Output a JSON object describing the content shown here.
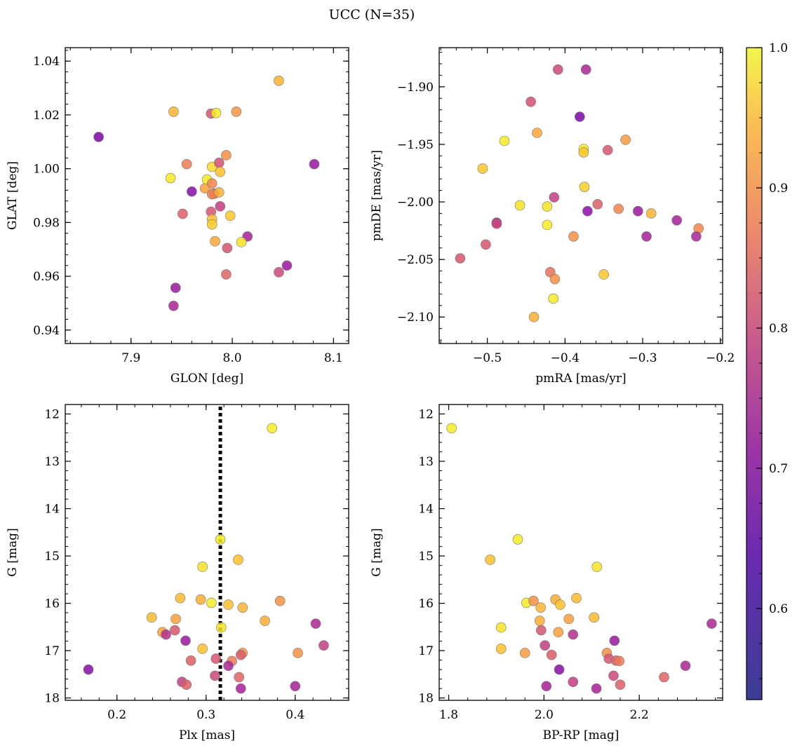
{
  "figure": {
    "title": "UCC (N=35)"
  },
  "colorbar": {
    "colormap": "plasma",
    "range": [
      0.535,
      1.0
    ],
    "ticks": [
      "1.0",
      "0.9",
      "0.8",
      "0.7",
      "0.6"
    ],
    "tick_values": [
      1.0,
      0.9,
      0.8,
      0.7,
      0.6
    ]
  },
  "chart_data": [
    {
      "id": "glon-glat",
      "type": "scatter",
      "xlabel": "GLON [deg]",
      "ylabel": "GLAT [deg]",
      "xlim": [
        7.835,
        8.115
      ],
      "ylim": [
        0.935,
        1.045
      ],
      "xticks": [
        "7.9",
        "8.0",
        "8.1"
      ],
      "xtick_values": [
        7.9,
        8.0,
        8.1
      ],
      "yticks": [
        "1.04",
        "1.02",
        "1.00",
        "0.98",
        "0.96",
        "0.94"
      ],
      "ytick_values": [
        1.04,
        1.02,
        1.0,
        0.98,
        0.96,
        0.94
      ],
      "points": [
        {
          "x": 7.868,
          "y": 1.0118,
          "c": 0.55
        },
        {
          "x": 8.081,
          "y": 1.0017,
          "c": 0.6
        },
        {
          "x": 8.046,
          "y": 1.0327,
          "c": 0.9
        },
        {
          "x": 7.942,
          "y": 1.0212,
          "c": 0.9
        },
        {
          "x": 8.004,
          "y": 1.0212,
          "c": 0.85
        },
        {
          "x": 7.979,
          "y": 1.0205,
          "c": 0.73
        },
        {
          "x": 7.984,
          "y": 1.0207,
          "c": 0.98
        },
        {
          "x": 7.939,
          "y": 0.9965,
          "c": 0.98
        },
        {
          "x": 7.955,
          "y": 1.0017,
          "c": 0.8
        },
        {
          "x": 7.96,
          "y": 0.9915,
          "c": 0.57
        },
        {
          "x": 7.973,
          "y": 0.9927,
          "c": 0.87
        },
        {
          "x": 7.975,
          "y": 0.996,
          "c": 0.98
        },
        {
          "x": 7.98,
          "y": 1.0007,
          "c": 0.96
        },
        {
          "x": 7.994,
          "y": 1.005,
          "c": 0.84
        },
        {
          "x": 7.987,
          "y": 1.0022,
          "c": 0.72
        },
        {
          "x": 7.988,
          "y": 0.9988,
          "c": 0.92
        },
        {
          "x": 7.98,
          "y": 0.9945,
          "c": 0.82
        },
        {
          "x": 7.982,
          "y": 0.9907,
          "c": 0.72
        },
        {
          "x": 7.98,
          "y": 0.9905,
          "c": 0.82
        },
        {
          "x": 7.987,
          "y": 0.9912,
          "c": 0.9
        },
        {
          "x": 7.951,
          "y": 0.9832,
          "c": 0.75
        },
        {
          "x": 7.979,
          "y": 0.984,
          "c": 0.73
        },
        {
          "x": 7.988,
          "y": 0.986,
          "c": 0.68
        },
        {
          "x": 7.998,
          "y": 0.9825,
          "c": 0.93
        },
        {
          "x": 7.98,
          "y": 0.9812,
          "c": 0.92
        },
        {
          "x": 7.98,
          "y": 0.9793,
          "c": 0.94
        },
        {
          "x": 8.015,
          "y": 0.9748,
          "c": 0.62
        },
        {
          "x": 7.983,
          "y": 0.973,
          "c": 0.88
        },
        {
          "x": 8.009,
          "y": 0.9727,
          "c": 0.97
        },
        {
          "x": 7.995,
          "y": 0.9705,
          "c": 0.73
        },
        {
          "x": 8.054,
          "y": 0.964,
          "c": 0.6
        },
        {
          "x": 8.046,
          "y": 0.9615,
          "c": 0.7
        },
        {
          "x": 7.994,
          "y": 0.9607,
          "c": 0.76
        },
        {
          "x": 7.944,
          "y": 0.9557,
          "c": 0.6
        },
        {
          "x": 7.942,
          "y": 0.949,
          "c": 0.63
        }
      ]
    },
    {
      "id": "pmra-pmde",
      "type": "scatter",
      "xlabel": "pmRA [mas/yr]",
      "ylabel": "pmDE [mas/yr]",
      "xlim": [
        -0.562,
        -0.197
      ],
      "ylim": [
        -2.123,
        -1.866
      ],
      "xticks": [
        "−0.5",
        "−0.4",
        "−0.3",
        "−0.2"
      ],
      "xtick_values": [
        -0.5,
        -0.4,
        -0.3,
        -0.2
      ],
      "yticks": [
        "−1.90",
        "−1.95",
        "−2.00",
        "−2.05",
        "−2.10"
      ],
      "ytick_values": [
        -1.9,
        -1.95,
        -2.0,
        -2.05,
        -2.1
      ],
      "points": [
        {
          "x": -0.409,
          "y": -1.885,
          "c": 0.7
        },
        {
          "x": -0.373,
          "y": -1.885,
          "c": 0.63
        },
        {
          "x": -0.444,
          "y": -1.913,
          "c": 0.72
        },
        {
          "x": -0.381,
          "y": -1.926,
          "c": 0.55
        },
        {
          "x": -0.436,
          "y": -1.94,
          "c": 0.88
        },
        {
          "x": -0.478,
          "y": -1.947,
          "c": 0.98
        },
        {
          "x": -0.376,
          "y": -1.954,
          "c": 0.98
        },
        {
          "x": -0.376,
          "y": -1.957,
          "c": 0.93
        },
        {
          "x": -0.345,
          "y": -1.955,
          "c": 0.73
        },
        {
          "x": -0.322,
          "y": -1.946,
          "c": 0.86
        },
        {
          "x": -0.506,
          "y": -1.971,
          "c": 0.93
        },
        {
          "x": -0.375,
          "y": -1.987,
          "c": 0.94
        },
        {
          "x": -0.414,
          "y": -1.996,
          "c": 0.68
        },
        {
          "x": -0.458,
          "y": -2.003,
          "c": 0.97
        },
        {
          "x": -0.423,
          "y": -2.004,
          "c": 0.97
        },
        {
          "x": -0.358,
          "y": -2.002,
          "c": 0.75
        },
        {
          "x": -0.331,
          "y": -2.006,
          "c": 0.82
        },
        {
          "x": -0.306,
          "y": -2.008,
          "c": 0.6
        },
        {
          "x": -0.371,
          "y": -2.008,
          "c": 0.58
        },
        {
          "x": -0.289,
          "y": -2.01,
          "c": 0.9
        },
        {
          "x": -0.488,
          "y": -2.018,
          "c": 0.6
        },
        {
          "x": -0.488,
          "y": -2.019,
          "c": 0.7
        },
        {
          "x": -0.256,
          "y": -2.016,
          "c": 0.62
        },
        {
          "x": -0.423,
          "y": -2.02,
          "c": 0.98
        },
        {
          "x": -0.228,
          "y": -2.023,
          "c": 0.82
        },
        {
          "x": -0.295,
          "y": -2.03,
          "c": 0.62
        },
        {
          "x": -0.231,
          "y": -2.03,
          "c": 0.63
        },
        {
          "x": -0.389,
          "y": -2.03,
          "c": 0.84
        },
        {
          "x": -0.502,
          "y": -2.037,
          "c": 0.73
        },
        {
          "x": -0.535,
          "y": -2.049,
          "c": 0.73
        },
        {
          "x": -0.419,
          "y": -2.061,
          "c": 0.78
        },
        {
          "x": -0.413,
          "y": -2.067,
          "c": 0.84
        },
        {
          "x": -0.35,
          "y": -2.063,
          "c": 0.93
        },
        {
          "x": -0.415,
          "y": -2.084,
          "c": 0.98
        },
        {
          "x": -0.44,
          "y": -2.1,
          "c": 0.89
        }
      ]
    },
    {
      "id": "plx-g",
      "type": "scatter",
      "xlabel": "Plx [mas]",
      "ylabel": "G [mag]",
      "xlim": [
        0.142,
        0.46
      ],
      "ylim": [
        18.05,
        11.8
      ],
      "xticks": [
        "0.2",
        "0.3",
        "0.4"
      ],
      "xtick_values": [
        0.2,
        0.3,
        0.4
      ],
      "yticks": [
        "12",
        "13",
        "14",
        "15",
        "16",
        "17",
        "18"
      ],
      "ytick_values": [
        12,
        13,
        14,
        15,
        16,
        17,
        18
      ],
      "vline": 0.316,
      "points": [
        {
          "x": 0.374,
          "y": 12.3,
          "c": 0.98
        },
        {
          "x": 0.316,
          "y": 14.65,
          "c": 0.98
        },
        {
          "x": 0.296,
          "y": 15.23,
          "c": 0.97
        },
        {
          "x": 0.336,
          "y": 15.08,
          "c": 0.92
        },
        {
          "x": 0.271,
          "y": 15.89,
          "c": 0.91
        },
        {
          "x": 0.294,
          "y": 15.92,
          "c": 0.89
        },
        {
          "x": 0.306,
          "y": 15.99,
          "c": 0.98
        },
        {
          "x": 0.325,
          "y": 16.03,
          "c": 0.92
        },
        {
          "x": 0.341,
          "y": 16.09,
          "c": 0.9
        },
        {
          "x": 0.383,
          "y": 15.95,
          "c": 0.84
        },
        {
          "x": 0.239,
          "y": 16.3,
          "c": 0.91
        },
        {
          "x": 0.266,
          "y": 16.33,
          "c": 0.87
        },
        {
          "x": 0.366,
          "y": 16.37,
          "c": 0.89
        },
        {
          "x": 0.317,
          "y": 16.51,
          "c": 0.97
        },
        {
          "x": 0.423,
          "y": 16.43,
          "c": 0.63
        },
        {
          "x": 0.251,
          "y": 16.61,
          "c": 0.87
        },
        {
          "x": 0.265,
          "y": 16.57,
          "c": 0.73
        },
        {
          "x": 0.255,
          "y": 16.66,
          "c": 0.65
        },
        {
          "x": 0.277,
          "y": 16.79,
          "c": 0.6
        },
        {
          "x": 0.296,
          "y": 16.96,
          "c": 0.92
        },
        {
          "x": 0.432,
          "y": 16.89,
          "c": 0.68
        },
        {
          "x": 0.341,
          "y": 17.05,
          "c": 0.86
        },
        {
          "x": 0.339,
          "y": 17.09,
          "c": 0.74
        },
        {
          "x": 0.403,
          "y": 17.05,
          "c": 0.84
        },
        {
          "x": 0.283,
          "y": 17.21,
          "c": 0.75
        },
        {
          "x": 0.311,
          "y": 17.17,
          "c": 0.73
        },
        {
          "x": 0.329,
          "y": 17.22,
          "c": 0.8
        },
        {
          "x": 0.325,
          "y": 17.32,
          "c": 0.63
        },
        {
          "x": 0.168,
          "y": 17.4,
          "c": 0.57
        },
        {
          "x": 0.31,
          "y": 17.53,
          "c": 0.7
        },
        {
          "x": 0.337,
          "y": 17.56,
          "c": 0.76
        },
        {
          "x": 0.273,
          "y": 17.66,
          "c": 0.68
        },
        {
          "x": 0.278,
          "y": 17.72,
          "c": 0.75
        },
        {
          "x": 0.4,
          "y": 17.75,
          "c": 0.62
        },
        {
          "x": 0.339,
          "y": 17.8,
          "c": 0.62
        }
      ]
    },
    {
      "id": "bprp-g",
      "type": "scatter",
      "xlabel": "BP-RP [mag]",
      "ylabel": "G [mag]",
      "xlim": [
        1.78,
        2.375
      ],
      "ylim": [
        18.05,
        11.8
      ],
      "xticks": [
        "1.8",
        "2.0",
        "2.2"
      ],
      "xtick_values": [
        1.8,
        2.0,
        2.2
      ],
      "yticks": [
        "12",
        "13",
        "14",
        "15",
        "16",
        "17",
        "18"
      ],
      "ytick_values": [
        12,
        13,
        14,
        15,
        16,
        17,
        18
      ],
      "points": [
        {
          "x": 1.806,
          "y": 12.3,
          "c": 0.98
        },
        {
          "x": 1.945,
          "y": 14.65,
          "c": 0.98
        },
        {
          "x": 1.887,
          "y": 15.08,
          "c": 0.92
        },
        {
          "x": 2.111,
          "y": 15.23,
          "c": 0.97
        },
        {
          "x": 2.068,
          "y": 15.89,
          "c": 0.91
        },
        {
          "x": 2.024,
          "y": 15.92,
          "c": 0.89
        },
        {
          "x": 1.963,
          "y": 15.99,
          "c": 0.98
        },
        {
          "x": 1.978,
          "y": 15.95,
          "c": 0.84
        },
        {
          "x": 2.034,
          "y": 16.03,
          "c": 0.92
        },
        {
          "x": 1.993,
          "y": 16.09,
          "c": 0.9
        },
        {
          "x": 2.052,
          "y": 16.33,
          "c": 0.87
        },
        {
          "x": 2.105,
          "y": 16.3,
          "c": 0.91
        },
        {
          "x": 1.991,
          "y": 16.37,
          "c": 0.89
        },
        {
          "x": 1.91,
          "y": 16.51,
          "c": 0.97
        },
        {
          "x": 2.352,
          "y": 16.43,
          "c": 0.63
        },
        {
          "x": 1.994,
          "y": 16.57,
          "c": 0.73
        },
        {
          "x": 2.03,
          "y": 16.61,
          "c": 0.87
        },
        {
          "x": 2.061,
          "y": 16.66,
          "c": 0.65
        },
        {
          "x": 2.148,
          "y": 16.79,
          "c": 0.6
        },
        {
          "x": 2.002,
          "y": 16.89,
          "c": 0.68
        },
        {
          "x": 1.91,
          "y": 16.96,
          "c": 0.92
        },
        {
          "x": 1.96,
          "y": 17.05,
          "c": 0.86
        },
        {
          "x": 2.016,
          "y": 17.09,
          "c": 0.74
        },
        {
          "x": 2.132,
          "y": 17.05,
          "c": 0.84
        },
        {
          "x": 2.136,
          "y": 17.17,
          "c": 0.73
        },
        {
          "x": 2.151,
          "y": 17.21,
          "c": 0.75
        },
        {
          "x": 2.158,
          "y": 17.22,
          "c": 0.8
        },
        {
          "x": 2.297,
          "y": 17.32,
          "c": 0.63
        },
        {
          "x": 2.032,
          "y": 17.4,
          "c": 0.57
        },
        {
          "x": 2.146,
          "y": 17.53,
          "c": 0.7
        },
        {
          "x": 2.252,
          "y": 17.56,
          "c": 0.76
        },
        {
          "x": 2.061,
          "y": 17.66,
          "c": 0.68
        },
        {
          "x": 2.16,
          "y": 17.72,
          "c": 0.75
        },
        {
          "x": 2.005,
          "y": 17.75,
          "c": 0.62
        },
        {
          "x": 2.11,
          "y": 17.8,
          "c": 0.62
        }
      ]
    }
  ]
}
